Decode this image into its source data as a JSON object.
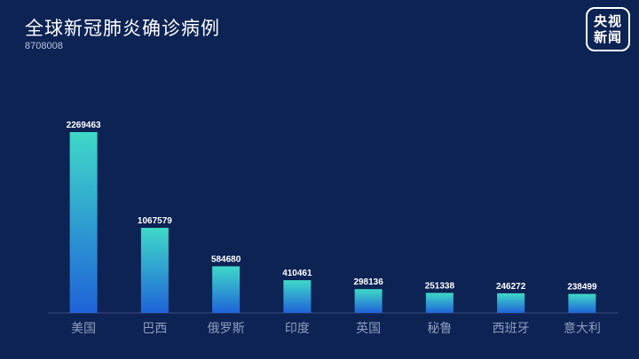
{
  "brand": {
    "line1": "央视",
    "line2": "新闻"
  },
  "chart_data": {
    "type": "bar",
    "title": "全球新冠肺炎确诊病例",
    "subtitle": "8708008",
    "categories": [
      "美国",
      "巴西",
      "俄罗斯",
      "印度",
      "英国",
      "秘鲁",
      "西班牙",
      "意大利"
    ],
    "values": [
      2269463,
      1067579,
      584680,
      410461,
      298136,
      251338,
      246272,
      238499
    ],
    "xlabel": "",
    "ylabel": "",
    "ylim": [
      0,
      2269463
    ],
    "grid": false,
    "colors": {
      "bar_top": "#3fd9c8",
      "bar_bottom": "#1f63d8",
      "axis": "#3a4d7a",
      "label": "#ffffff",
      "tick": "#8d9dbf"
    }
  }
}
